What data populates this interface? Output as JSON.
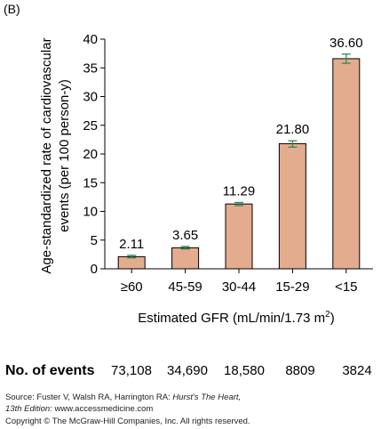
{
  "panel_label": "(B)",
  "chart_data": {
    "type": "bar",
    "title": "",
    "ylabel_line1": "Age-standardized rate of cardiovascular",
    "ylabel_line2": "events (per 100 person-y)",
    "xlabel": "Estimated GFR (mL/min/1.73 m",
    "xlabel_sup": "2",
    "xlabel_close": ")",
    "categories": [
      "≥60",
      "45-59",
      "30-44",
      "15-29",
      "<15"
    ],
    "values": [
      2.11,
      3.65,
      11.29,
      21.8,
      36.6
    ],
    "value_labels": [
      "2.11",
      "3.65",
      "11.29",
      "21.80",
      "36.60"
    ],
    "error_low": [
      1.9,
      3.45,
      11.0,
      21.2,
      35.8
    ],
    "error_high": [
      2.35,
      3.9,
      11.55,
      22.3,
      37.4
    ],
    "ylim": [
      0,
      40
    ],
    "yticks": [
      0,
      5,
      10,
      15,
      20,
      25,
      30,
      35,
      40
    ],
    "grid": false,
    "bar_color": "#e3ac8f",
    "error_color": "#2e8b57"
  },
  "events": {
    "title": "No. of events",
    "values": [
      "73,108",
      "34,690",
      "18,580",
      "8809",
      "3824"
    ]
  },
  "footer": {
    "source_prefix": "Source: Fuster V, Walsh RA, Harrington RA: ",
    "source_book": "Hurst's The Heart,",
    "edition": "13th Edition:",
    "edition_url": " www.accessmedicine.com",
    "copyright": "Copyright © The McGraw-Hill Companies, Inc. All rights reserved."
  }
}
